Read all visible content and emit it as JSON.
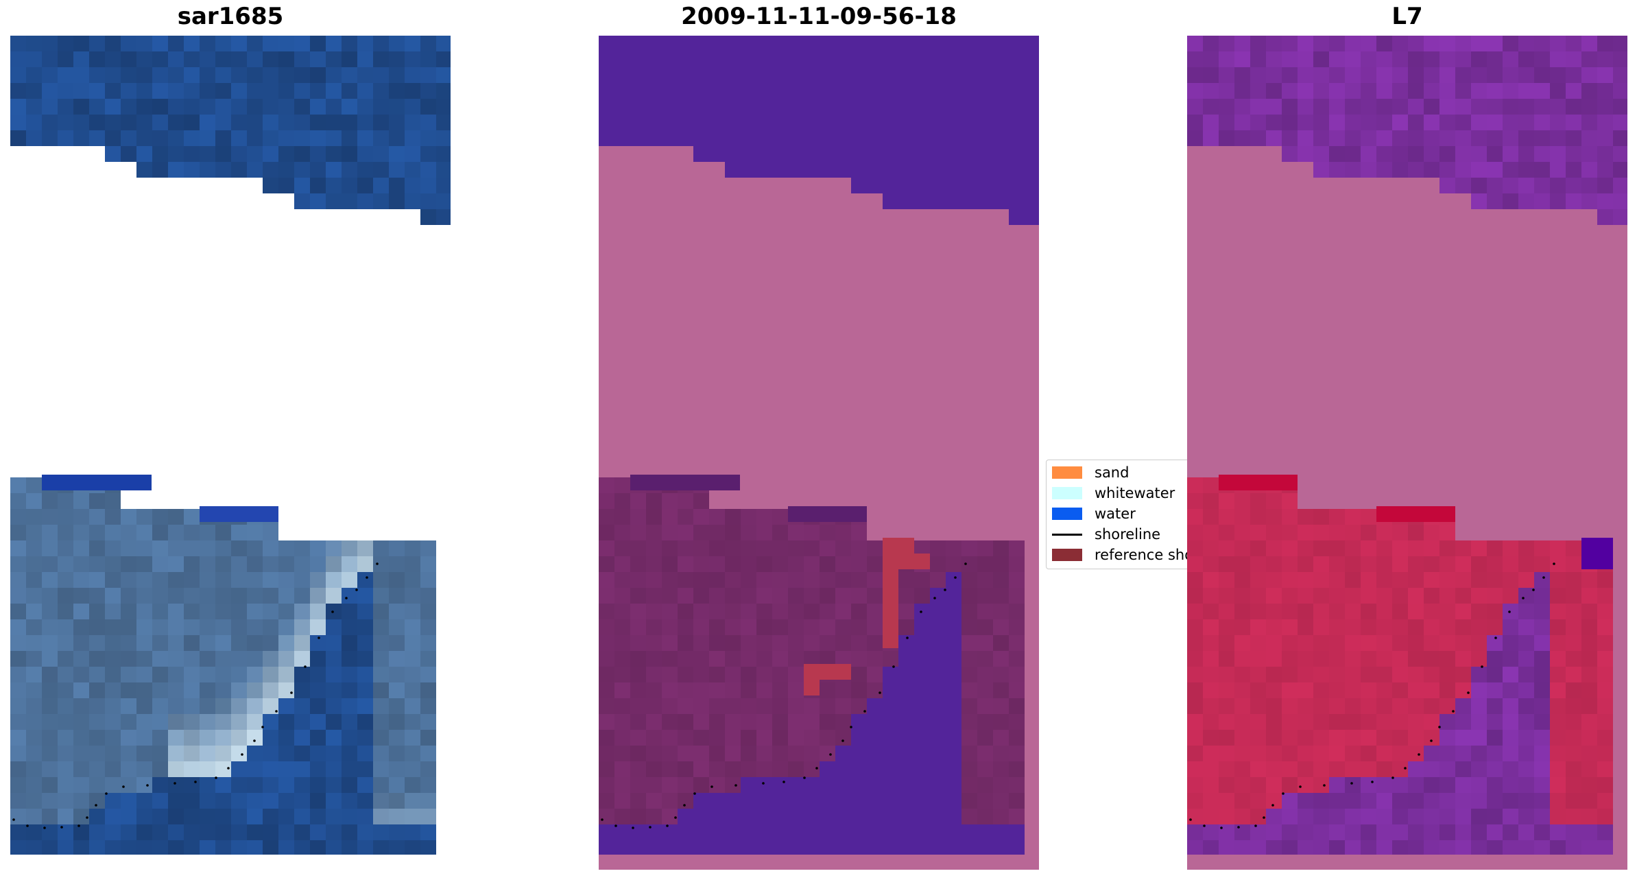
{
  "figure": {
    "titles": [
      "sar1685",
      "2009-11-11-09-56-18",
      "L7"
    ]
  },
  "legend": {
    "items": [
      {
        "label": "sand",
        "color": "#ff8c40",
        "kind": "patch"
      },
      {
        "label": "whitewater",
        "color": "#ccffff",
        "kind": "patch"
      },
      {
        "label": "water",
        "color": "#0a5cf0",
        "kind": "patch"
      },
      {
        "label": "shoreline",
        "color": "#000000",
        "kind": "line"
      },
      {
        "label": "reference shoreline",
        "color": "#8b2d35",
        "kind": "patch"
      }
    ]
  },
  "colors": {
    "rgb_water": "#1f4a8a",
    "rgb_land": "#4b6e96",
    "rgb_whitewater": "#d8ecf5",
    "class_water": "#53249a",
    "class_nodata": "#b96796",
    "class_land": "#722a66",
    "class_sand": "#b8384f",
    "index_water": "#7e30a2",
    "index_land": "#c22a55",
    "shoreline": "#000000"
  },
  "chart_data": {
    "type": "heatmap",
    "panels": [
      {
        "title": "sar1685",
        "content": "rgb image"
      },
      {
        "title": "2009-11-11-09-56-18",
        "content": "classified image"
      },
      {
        "title": "L7",
        "content": "index image"
      }
    ]
  }
}
